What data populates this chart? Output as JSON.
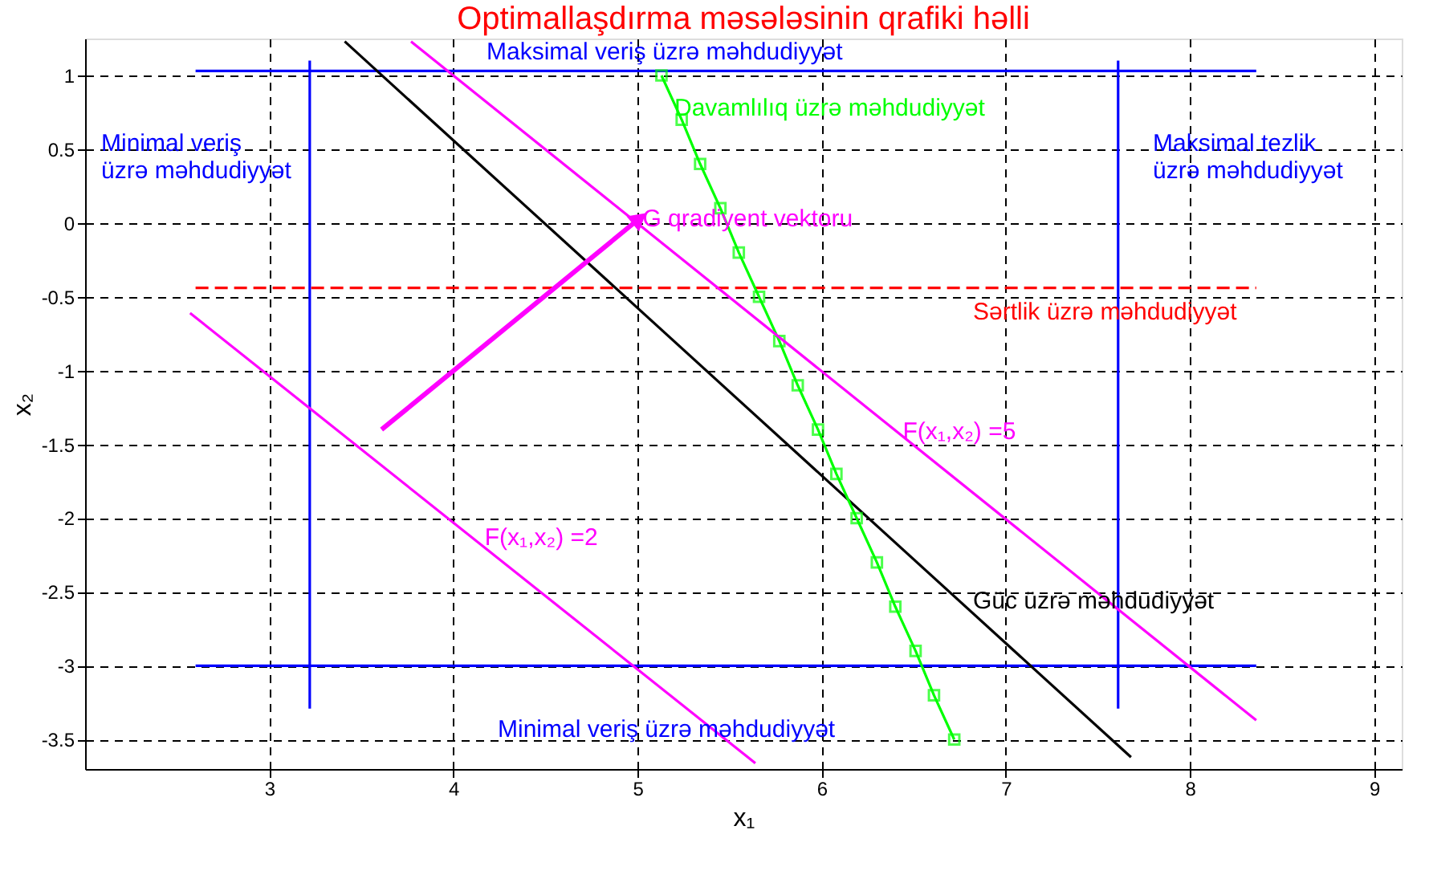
{
  "chart_data": {
    "type": "line",
    "title": "Optimallaşdırma məsələsinin qrafiki həlli",
    "xlabel": "x₁",
    "ylabel": "x₂",
    "xlim": [
      2,
      9.15
    ],
    "ylim": [
      -3.7,
      1.25
    ],
    "xticks": [
      3,
      4,
      5,
      6,
      7,
      8,
      9
    ],
    "yticks": [
      -3.5,
      -3,
      -2.5,
      -2,
      -1.5,
      -1,
      -0.5,
      0,
      0.5,
      1
    ],
    "grid": true,
    "series": [
      {
        "color": "#0000ff",
        "x": [
          2.6,
          8.36
        ],
        "values": [
          1.03,
          1.03
        ]
      },
      {
        "color": "#0000ff",
        "x": [
          2.6,
          8.36
        ],
        "values": [
          -3,
          -3
        ]
      },
      {
        "color": "#0000ff",
        "x": [
          3.22,
          3.22
        ],
        "values": [
          1.1,
          -3.29
        ]
      },
      {
        "color": "#0000ff",
        "x": [
          7.61,
          7.61
        ],
        "values": [
          1.1,
          -3.29
        ]
      },
      {
        "color": "#ff0000",
        "line_style": "dashed",
        "x": [
          2.6,
          8.36
        ],
        "values": [
          -0.44,
          -0.44
        ]
      },
      {
        "color": "#000000",
        "x": [
          3.41,
          7.68
        ],
        "values": [
          1.23,
          -3.62
        ]
      },
      {
        "color": "#00ff00",
        "marker": "square",
        "x": [
          5.13,
          5.24,
          5.34,
          5.45,
          5.55,
          5.66,
          5.77,
          5.87,
          5.98,
          6.08,
          6.19,
          6.3,
          6.4,
          6.51,
          6.61,
          6.72
        ],
        "values": [
          1.0,
          0.7,
          0.4,
          0.1,
          -0.2,
          -0.5,
          -0.8,
          -1.1,
          -1.4,
          -1.7,
          -2.0,
          -2.3,
          -2.6,
          -2.9,
          -3.2,
          -3.5
        ]
      },
      {
        "color": "#ff00ff",
        "x": [
          2.57,
          5.64
        ],
        "values": [
          -0.61,
          -3.66
        ]
      },
      {
        "color": "#ff00ff",
        "x": [
          3.77,
          8.36
        ],
        "values": [
          1.23,
          -3.37
        ]
      },
      {
        "color": "#ff00ff",
        "x": [
          3.61,
          5.01
        ],
        "values": [
          -1.4,
          0.03
        ]
      }
    ],
    "annotations": [
      {
        "text": "Maksimal veriş üzrə məhdudiyyət",
        "x": 4.18,
        "y": 1.03
      },
      {
        "text": "Davamlılıq üzrə məhdudiyyət",
        "x": 5.2,
        "y": 0.78
      },
      "Minimal veriş\nüzrə məhdudiyyət",
      "Maksimal tezlik\nüzrə məhdudiyyət",
      {
        "text": "G qradiyent vektoru",
        "x": 5.01,
        "y": 0.03
      },
      "Sərtlik üzrə məhdudiyyət",
      {
        "text": "F(x₁,x₂) =5",
        "x": 6.44,
        "y": -1.41
      },
      {
        "text": "F(x₁,x₂) =2",
        "x": 4.17,
        "y": -2.13
      },
      "Güc üzrə məhdudiyyət",
      "Minimal veriş üzrə məhdudiyyət"
    ]
  }
}
